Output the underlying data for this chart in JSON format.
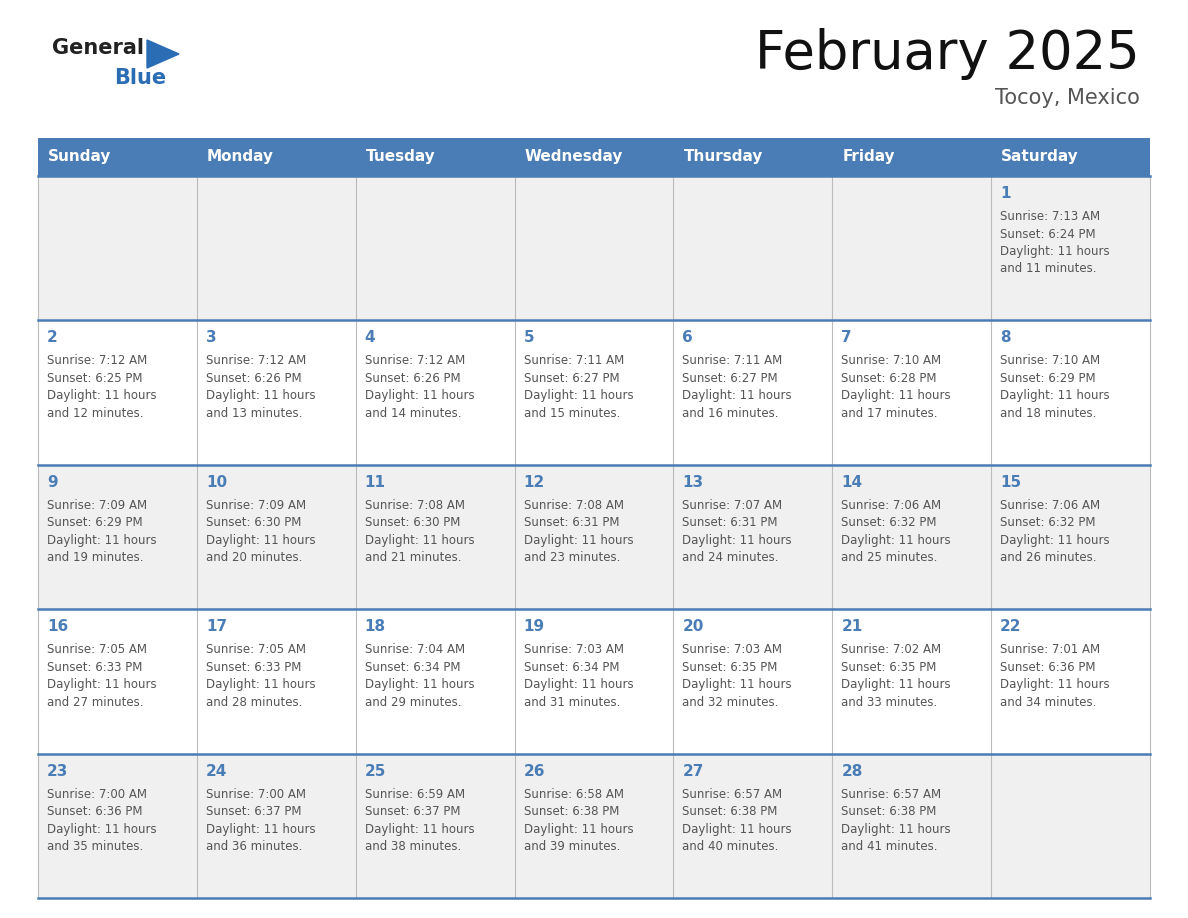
{
  "title": "February 2025",
  "subtitle": "Tocoy, Mexico",
  "header_bg": "#4a7db5",
  "header_text_color": "#ffffff",
  "cell_bg_light": "#f0f0f0",
  "cell_bg_white": "#ffffff",
  "day_number_color": "#4a7db5",
  "info_text_color": "#555555",
  "sep_line_color": "#4a7db5",
  "grid_line_color": "#bbbbbb",
  "days_of_week": [
    "Sunday",
    "Monday",
    "Tuesday",
    "Wednesday",
    "Thursday",
    "Friday",
    "Saturday"
  ],
  "calendar_data": [
    [
      null,
      null,
      null,
      null,
      null,
      null,
      {
        "day": 1,
        "sunrise": "7:13 AM",
        "sunset": "6:24 PM",
        "daylight": "11 hours and 11 minutes"
      }
    ],
    [
      {
        "day": 2,
        "sunrise": "7:12 AM",
        "sunset": "6:25 PM",
        "daylight": "11 hours and 12 minutes"
      },
      {
        "day": 3,
        "sunrise": "7:12 AM",
        "sunset": "6:26 PM",
        "daylight": "11 hours and 13 minutes"
      },
      {
        "day": 4,
        "sunrise": "7:12 AM",
        "sunset": "6:26 PM",
        "daylight": "11 hours and 14 minutes"
      },
      {
        "day": 5,
        "sunrise": "7:11 AM",
        "sunset": "6:27 PM",
        "daylight": "11 hours and 15 minutes"
      },
      {
        "day": 6,
        "sunrise": "7:11 AM",
        "sunset": "6:27 PM",
        "daylight": "11 hours and 16 minutes"
      },
      {
        "day": 7,
        "sunrise": "7:10 AM",
        "sunset": "6:28 PM",
        "daylight": "11 hours and 17 minutes"
      },
      {
        "day": 8,
        "sunrise": "7:10 AM",
        "sunset": "6:29 PM",
        "daylight": "11 hours and 18 minutes"
      }
    ],
    [
      {
        "day": 9,
        "sunrise": "7:09 AM",
        "sunset": "6:29 PM",
        "daylight": "11 hours and 19 minutes"
      },
      {
        "day": 10,
        "sunrise": "7:09 AM",
        "sunset": "6:30 PM",
        "daylight": "11 hours and 20 minutes"
      },
      {
        "day": 11,
        "sunrise": "7:08 AM",
        "sunset": "6:30 PM",
        "daylight": "11 hours and 21 minutes"
      },
      {
        "day": 12,
        "sunrise": "7:08 AM",
        "sunset": "6:31 PM",
        "daylight": "11 hours and 23 minutes"
      },
      {
        "day": 13,
        "sunrise": "7:07 AM",
        "sunset": "6:31 PM",
        "daylight": "11 hours and 24 minutes"
      },
      {
        "day": 14,
        "sunrise": "7:06 AM",
        "sunset": "6:32 PM",
        "daylight": "11 hours and 25 minutes"
      },
      {
        "day": 15,
        "sunrise": "7:06 AM",
        "sunset": "6:32 PM",
        "daylight": "11 hours and 26 minutes"
      }
    ],
    [
      {
        "day": 16,
        "sunrise": "7:05 AM",
        "sunset": "6:33 PM",
        "daylight": "11 hours and 27 minutes"
      },
      {
        "day": 17,
        "sunrise": "7:05 AM",
        "sunset": "6:33 PM",
        "daylight": "11 hours and 28 minutes"
      },
      {
        "day": 18,
        "sunrise": "7:04 AM",
        "sunset": "6:34 PM",
        "daylight": "11 hours and 29 minutes"
      },
      {
        "day": 19,
        "sunrise": "7:03 AM",
        "sunset": "6:34 PM",
        "daylight": "11 hours and 31 minutes"
      },
      {
        "day": 20,
        "sunrise": "7:03 AM",
        "sunset": "6:35 PM",
        "daylight": "11 hours and 32 minutes"
      },
      {
        "day": 21,
        "sunrise": "7:02 AM",
        "sunset": "6:35 PM",
        "daylight": "11 hours and 33 minutes"
      },
      {
        "day": 22,
        "sunrise": "7:01 AM",
        "sunset": "6:36 PM",
        "daylight": "11 hours and 34 minutes"
      }
    ],
    [
      {
        "day": 23,
        "sunrise": "7:00 AM",
        "sunset": "6:36 PM",
        "daylight": "11 hours and 35 minutes"
      },
      {
        "day": 24,
        "sunrise": "7:00 AM",
        "sunset": "6:37 PM",
        "daylight": "11 hours and 36 minutes"
      },
      {
        "day": 25,
        "sunrise": "6:59 AM",
        "sunset": "6:37 PM",
        "daylight": "11 hours and 38 minutes"
      },
      {
        "day": 26,
        "sunrise": "6:58 AM",
        "sunset": "6:38 PM",
        "daylight": "11 hours and 39 minutes"
      },
      {
        "day": 27,
        "sunrise": "6:57 AM",
        "sunset": "6:38 PM",
        "daylight": "11 hours and 40 minutes"
      },
      {
        "day": 28,
        "sunrise": "6:57 AM",
        "sunset": "6:38 PM",
        "daylight": "11 hours and 41 minutes"
      },
      null
    ]
  ],
  "logo_general_color": "#222222",
  "logo_blue_color": "#2a6db5",
  "figwidth": 11.88,
  "figheight": 9.18,
  "dpi": 100
}
